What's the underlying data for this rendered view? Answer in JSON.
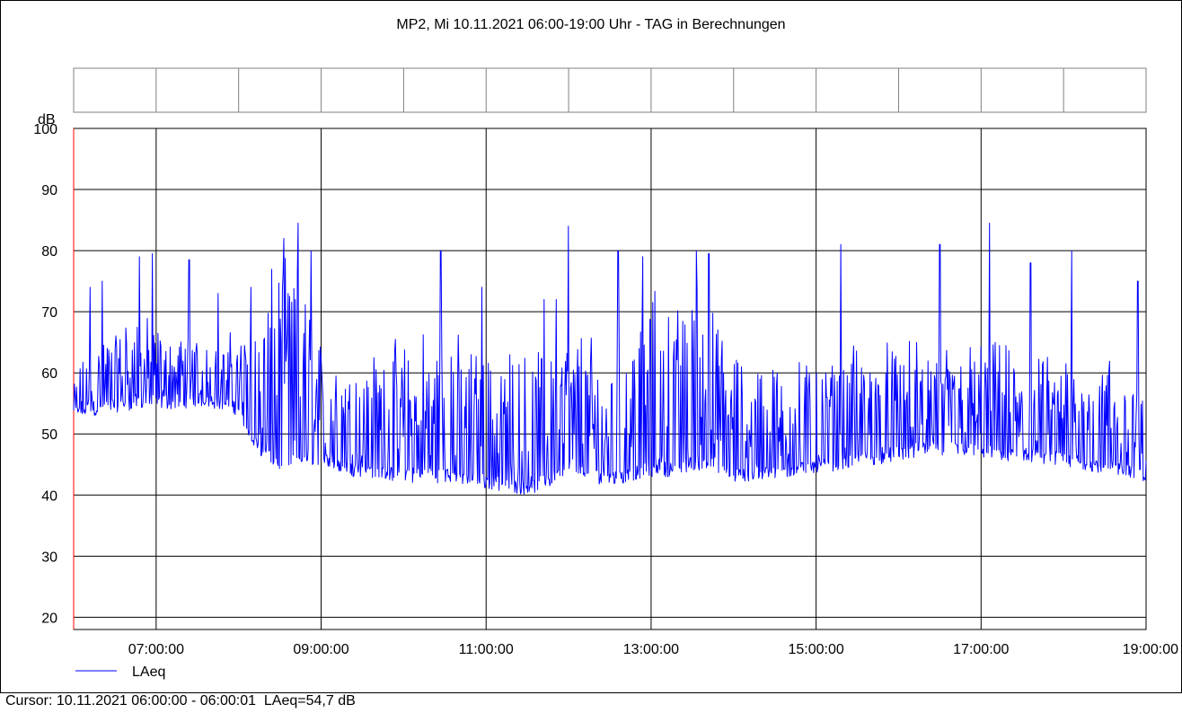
{
  "chart_data": {
    "type": "line",
    "title": "MP2, Mi 10.11.2021 06:00-19:00 Uhr - TAG in Berechnungen",
    "ylabel": "dB",
    "xlabel": "",
    "ylim": [
      18,
      100
    ],
    "xlim_hours": [
      6,
      19
    ],
    "yticks": [
      "100",
      "90",
      "80",
      "70",
      "60",
      "50",
      "40",
      "30",
      "20"
    ],
    "xticks": [
      "07:00:00",
      "09:00:00",
      "11:00:00",
      "13:00:00",
      "15:00:00",
      "17:00:00",
      "19:00:00"
    ],
    "grid": true,
    "legend_position": "bottom-left",
    "series": [
      {
        "name": "LAeq",
        "color": "#0000ff",
        "x_hours": [
          6.0,
          6.25,
          6.5,
          6.75,
          7.0,
          7.25,
          7.5,
          7.75,
          8.0,
          8.25,
          8.5,
          8.75,
          9.0,
          9.25,
          9.5,
          9.75,
          10.0,
          10.25,
          10.5,
          10.75,
          11.0,
          11.25,
          11.5,
          11.75,
          12.0,
          12.25,
          12.5,
          12.75,
          13.0,
          13.25,
          13.5,
          13.75,
          14.0,
          14.25,
          14.5,
          14.75,
          15.0,
          15.25,
          15.5,
          15.75,
          16.0,
          16.25,
          16.5,
          16.75,
          17.0,
          17.25,
          17.5,
          17.75,
          18.0,
          18.25,
          18.5,
          18.75,
          19.0
        ],
        "baseline": [
          52,
          53,
          53.5,
          54,
          54,
          54,
          54.5,
          54,
          53,
          46,
          44,
          44.5,
          45,
          43,
          43,
          42.5,
          42,
          42,
          42,
          41.5,
          41,
          40.5,
          40,
          41,
          44,
          42,
          41.5,
          42,
          43,
          43,
          44,
          44,
          42,
          42,
          42.5,
          43,
          43.5,
          44,
          44.5,
          45,
          45.5,
          46,
          46.5,
          46.5,
          46,
          45.5,
          45,
          44.5,
          44.5,
          44,
          43.5,
          43,
          42
        ],
        "peak_level": [
          58,
          64,
          66,
          68,
          66,
          65,
          65,
          64,
          65,
          68,
          74,
          72,
          62,
          60,
          60,
          62,
          62,
          64,
          64,
          62,
          60,
          60,
          60,
          62,
          66,
          64,
          62,
          64,
          70,
          66,
          72,
          66,
          60,
          60,
          60,
          60,
          60,
          60,
          62,
          62,
          62,
          62,
          62,
          62,
          62,
          62,
          60,
          60,
          60,
          60,
          60,
          58,
          56
        ],
        "peaks": [
          {
            "t": 6.2,
            "v": 74
          },
          {
            "t": 6.35,
            "v": 75
          },
          {
            "t": 6.8,
            "v": 79
          },
          {
            "t": 6.95,
            "v": 79.5
          },
          {
            "t": 7.4,
            "v": 78.5
          },
          {
            "t": 7.75,
            "v": 73
          },
          {
            "t": 8.15,
            "v": 74
          },
          {
            "t": 8.55,
            "v": 82
          },
          {
            "t": 8.72,
            "v": 84.5
          },
          {
            "t": 8.88,
            "v": 80
          },
          {
            "t": 10.45,
            "v": 80
          },
          {
            "t": 10.95,
            "v": 74
          },
          {
            "t": 11.7,
            "v": 72
          },
          {
            "t": 11.85,
            "v": 72
          },
          {
            "t": 12.0,
            "v": 84
          },
          {
            "t": 12.6,
            "v": 80
          },
          {
            "t": 12.9,
            "v": 79
          },
          {
            "t": 13.55,
            "v": 80
          },
          {
            "t": 13.7,
            "v": 79.5
          },
          {
            "t": 15.3,
            "v": 81
          },
          {
            "t": 16.5,
            "v": 81
          },
          {
            "t": 17.1,
            "v": 84.5
          },
          {
            "t": 17.6,
            "v": 78
          },
          {
            "t": 18.1,
            "v": 80
          },
          {
            "t": 18.9,
            "v": 75
          }
        ]
      }
    ]
  },
  "cursor": {
    "label": "Cursor: 10.11.2021 06:00:00 - 06:00:01",
    "value": "LAeq=54,7 dB"
  }
}
